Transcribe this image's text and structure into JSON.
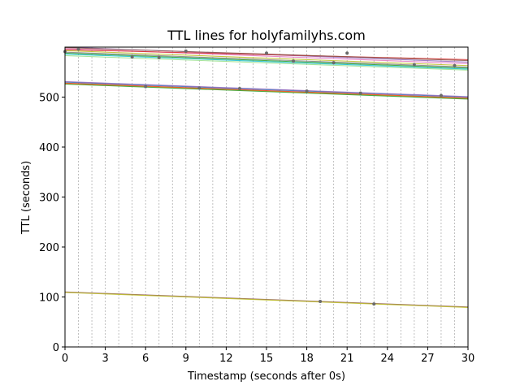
{
  "chart_data": {
    "type": "line",
    "title": "TTL lines for holyfamilyhs.com",
    "xlabel": "Timestamp (seconds after 0s)",
    "ylabel": "TTL (seconds)",
    "xlim": [
      0,
      30
    ],
    "ylim": [
      0,
      600
    ],
    "xticks": [
      "0",
      "3",
      "6",
      "9",
      "12",
      "15",
      "18",
      "21",
      "24",
      "27",
      "30"
    ],
    "yticks": [
      "0",
      "100",
      "200",
      "300",
      "400",
      "500"
    ],
    "grid": "vertical dashed lines at every second",
    "series": [
      {
        "color": "#9467bd",
        "x": [
          0,
          30
        ],
        "y": [
          600,
          570
        ]
      },
      {
        "color": "#e377c2",
        "x": [
          0,
          30
        ],
        "y": [
          597,
          567
        ]
      },
      {
        "color": "#d62728",
        "x": [
          0,
          30
        ],
        "y": [
          595,
          575
        ]
      },
      {
        "color": "#8c564b",
        "x": [
          0,
          30
        ],
        "y": [
          599,
          573
        ]
      },
      {
        "color": "#bcbd22",
        "x": [
          0,
          30
        ],
        "y": [
          593,
          563
        ]
      },
      {
        "color": "#7f7f7f",
        "x": [
          0,
          30
        ],
        "y": [
          590,
          560
        ]
      },
      {
        "color": "#2ca02c",
        "x": [
          0,
          30
        ],
        "y": [
          588,
          558
        ]
      },
      {
        "color": "#17becf",
        "x": [
          0,
          30
        ],
        "y": [
          586,
          556
        ]
      },
      {
        "color": "#98df8a",
        "x": [
          0,
          30
        ],
        "y": [
          583,
          554
        ]
      },
      {
        "color": "#1f77b4",
        "x": [
          0,
          30
        ],
        "y": [
          530,
          500
        ]
      },
      {
        "color": "#9467bd",
        "x": [
          0,
          30
        ],
        "y": [
          531,
          501
        ]
      },
      {
        "color": "#d62728",
        "x": [
          0,
          30
        ],
        "y": [
          528,
          498
        ]
      },
      {
        "color": "#ff7f0e",
        "x": [
          0,
          30
        ],
        "y": [
          527,
          497
        ]
      },
      {
        "color": "#2ca02c",
        "x": [
          0,
          30
        ],
        "y": [
          526,
          496
        ]
      },
      {
        "color": "#8c564b",
        "x": [
          0,
          30
        ],
        "y": [
          110,
          80
        ]
      },
      {
        "color": "#bcbd22",
        "x": [
          0,
          30
        ],
        "y": [
          109,
          79
        ]
      }
    ],
    "points": {
      "x": [
        0,
        1,
        5,
        7,
        9,
        15,
        17,
        20,
        21,
        26,
        29,
        6,
        10,
        13,
        18,
        22,
        28,
        19,
        23
      ],
      "y": [
        591,
        596,
        580,
        579,
        592,
        588,
        572,
        569,
        588,
        565,
        563,
        521,
        518,
        517,
        512,
        508,
        503,
        91,
        86
      ]
    }
  }
}
